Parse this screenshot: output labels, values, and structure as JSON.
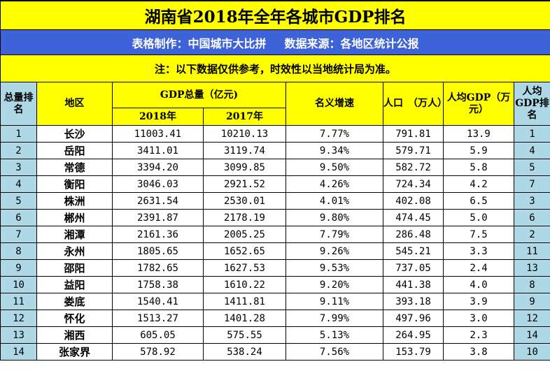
{
  "title": "湖南省2018年全年各城市GDP排名",
  "banner": {
    "maker": "表格制作：中国城市大比拼",
    "source": "数据来源：各地区统计公报"
  },
  "note": "注：以下数据仅供参考，时效性以当地统计局为准。",
  "headers": {
    "rank": "总量排名",
    "region": "地区",
    "gdp_total": "GDP总量（亿元)",
    "y2018": "2018年",
    "y2017": "2017年",
    "growth": "名义增速",
    "population": "人口　（万人）",
    "per_capita": "人均GDP（万元）",
    "per_capita_rank": "人均GDP排名"
  },
  "rows": [
    {
      "rank": "1",
      "city": "长沙",
      "gdp2018": "11003.41",
      "gdp2017": "10210.13",
      "growth": "7.77%",
      "pop": "791.81",
      "per": "13.9",
      "prank": "1"
    },
    {
      "rank": "2",
      "city": "岳阳",
      "gdp2018": "3411.01",
      "gdp2017": "3119.74",
      "growth": "9.34%",
      "pop": "579.71",
      "per": "5.9",
      "prank": "4"
    },
    {
      "rank": "3",
      "city": "常德",
      "gdp2018": "3394.20",
      "gdp2017": "3099.85",
      "growth": "9.50%",
      "pop": "582.72",
      "per": "5.8",
      "prank": "5"
    },
    {
      "rank": "4",
      "city": "衡阳",
      "gdp2018": "3046.03",
      "gdp2017": "2921.52",
      "growth": "4.26%",
      "pop": "724.34",
      "per": "4.2",
      "prank": "7"
    },
    {
      "rank": "5",
      "city": "株洲",
      "gdp2018": "2631.54",
      "gdp2017": "2530.01",
      "growth": "4.01%",
      "pop": "402.08",
      "per": "6.5",
      "prank": "3"
    },
    {
      "rank": "6",
      "city": "郴州",
      "gdp2018": "2391.87",
      "gdp2017": "2178.19",
      "growth": "9.80%",
      "pop": "474.45",
      "per": "5.0",
      "prank": "6"
    },
    {
      "rank": "7",
      "city": "湘潭",
      "gdp2018": "2161.36",
      "gdp2017": "2005.25",
      "growth": "7.79%",
      "pop": "286.48",
      "per": "7.5",
      "prank": "2"
    },
    {
      "rank": "8",
      "city": "永州",
      "gdp2018": "1805.65",
      "gdp2017": "1652.65",
      "growth": "9.26%",
      "pop": "545.21",
      "per": "3.3",
      "prank": "11"
    },
    {
      "rank": "9",
      "city": "邵阳",
      "gdp2018": "1782.65",
      "gdp2017": "1627.53",
      "growth": "9.53%",
      "pop": "737.05",
      "per": "2.4",
      "prank": "13"
    },
    {
      "rank": "10",
      "city": "益阳",
      "gdp2018": "1758.38",
      "gdp2017": "1610.22",
      "growth": "9.20%",
      "pop": "441.38",
      "per": "4.0",
      "prank": "8"
    },
    {
      "rank": "11",
      "city": "娄底",
      "gdp2018": "1540.41",
      "gdp2017": "1411.81",
      "growth": "9.11%",
      "pop": "393.18",
      "per": "3.9",
      "prank": "9"
    },
    {
      "rank": "12",
      "city": "怀化",
      "gdp2018": "1513.27",
      "gdp2017": "1401.28",
      "growth": "7.99%",
      "pop": "497.96",
      "per": "3.0",
      "prank": "12"
    },
    {
      "rank": "13",
      "city": "湘西",
      "gdp2018": "605.05",
      "gdp2017": "575.55",
      "growth": "5.13%",
      "pop": "264.95",
      "per": "2.3",
      "prank": "14"
    },
    {
      "rank": "14",
      "city": "张家界",
      "gdp2018": "578.92",
      "gdp2017": "538.24",
      "growth": "7.56%",
      "pop": "153.79",
      "per": "3.8",
      "prank": "10"
    }
  ]
}
